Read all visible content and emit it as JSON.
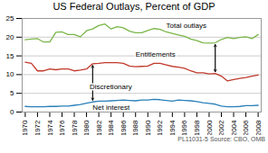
{
  "chart_data": {
    "type": "line",
    "title": "US Federal Outlays, Percent of GDP",
    "caption": "PL11031-5 Source: CBO, OMB",
    "x": [
      1970,
      1971,
      1972,
      1973,
      1974,
      1975,
      1976,
      1977,
      1978,
      1979,
      1980,
      1981,
      1982,
      1983,
      1984,
      1985,
      1986,
      1987,
      1988,
      1989,
      1990,
      1991,
      1992,
      1993,
      1994,
      1995,
      1996,
      1997,
      1998,
      1999,
      2000,
      2001,
      2002,
      2003,
      2004,
      2005,
      2006,
      2007,
      2008
    ],
    "series": [
      {
        "name": "Total outlays",
        "color": "#7ab648",
        "values": [
          19.3,
          19.5,
          19.6,
          18.7,
          18.7,
          21.3,
          21.4,
          20.7,
          20.7,
          20.1,
          21.7,
          22.2,
          23.1,
          23.5,
          22.2,
          22.8,
          22.5,
          21.6,
          21.2,
          21.2,
          21.8,
          22.3,
          22.1,
          21.4,
          21.0,
          20.6,
          20.2,
          19.5,
          19.1,
          18.5,
          18.4,
          18.5,
          19.4,
          19.9,
          19.6,
          19.9,
          20.1,
          19.6,
          20.7
        ]
      },
      {
        "name": "Entitlements",
        "color": "#c0392b",
        "values": [
          13.3,
          13.0,
          11.0,
          11.0,
          11.5,
          11.3,
          11.5,
          11.5,
          11.0,
          11.2,
          11.5,
          12.9,
          13.0,
          13.2,
          13.2,
          13.2,
          13.0,
          12.3,
          12.1,
          12.2,
          12.3,
          13.0,
          13.0,
          12.6,
          12.2,
          12.0,
          11.7,
          11.0,
          10.5,
          10.5,
          10.2,
          10.3,
          9.6,
          8.3,
          8.7,
          9.0,
          9.2,
          9.6,
          9.9
        ]
      },
      {
        "name": "Net interest",
        "color": "#2980b9",
        "values": [
          1.5,
          1.4,
          1.4,
          1.4,
          1.5,
          1.5,
          1.6,
          1.6,
          1.8,
          2.0,
          2.4,
          2.7,
          2.9,
          2.9,
          3.0,
          3.1,
          3.2,
          3.1,
          3.0,
          3.2,
          3.2,
          3.4,
          3.3,
          3.1,
          2.9,
          3.2,
          3.1,
          3.0,
          2.8,
          2.5,
          2.3,
          2.1,
          1.6,
          1.4,
          1.4,
          1.5,
          1.7,
          1.7,
          1.8
        ]
      }
    ],
    "xlim": [
      1969.5,
      2008.5
    ],
    "xticks": [
      1970,
      1972,
      1974,
      1976,
      1978,
      1980,
      1982,
      1984,
      1986,
      1988,
      1990,
      1992,
      1994,
      1996,
      1998,
      2000,
      2002,
      2004,
      2006,
      2008
    ],
    "ylim": [
      0,
      25
    ],
    "yticks": [
      0,
      5,
      10,
      15,
      20,
      25
    ],
    "grid": "y",
    "annotations": [
      {
        "text": "Total outlays",
        "x": 1993,
        "y": 22.5
      },
      {
        "text": "Entitlements",
        "x": 1988,
        "y": 14.8
      },
      {
        "text": "Net interest",
        "x": 1981,
        "y": 0.5
      },
      {
        "text": "Discretionary",
        "x": 1980.5,
        "y": 6.2
      }
    ],
    "arrows": [
      {
        "x": 1981,
        "between": [
          "Net interest",
          "Entitlements"
        ]
      },
      {
        "x": 2001,
        "between": [
          "Entitlements",
          "Total outlays"
        ]
      }
    ]
  }
}
